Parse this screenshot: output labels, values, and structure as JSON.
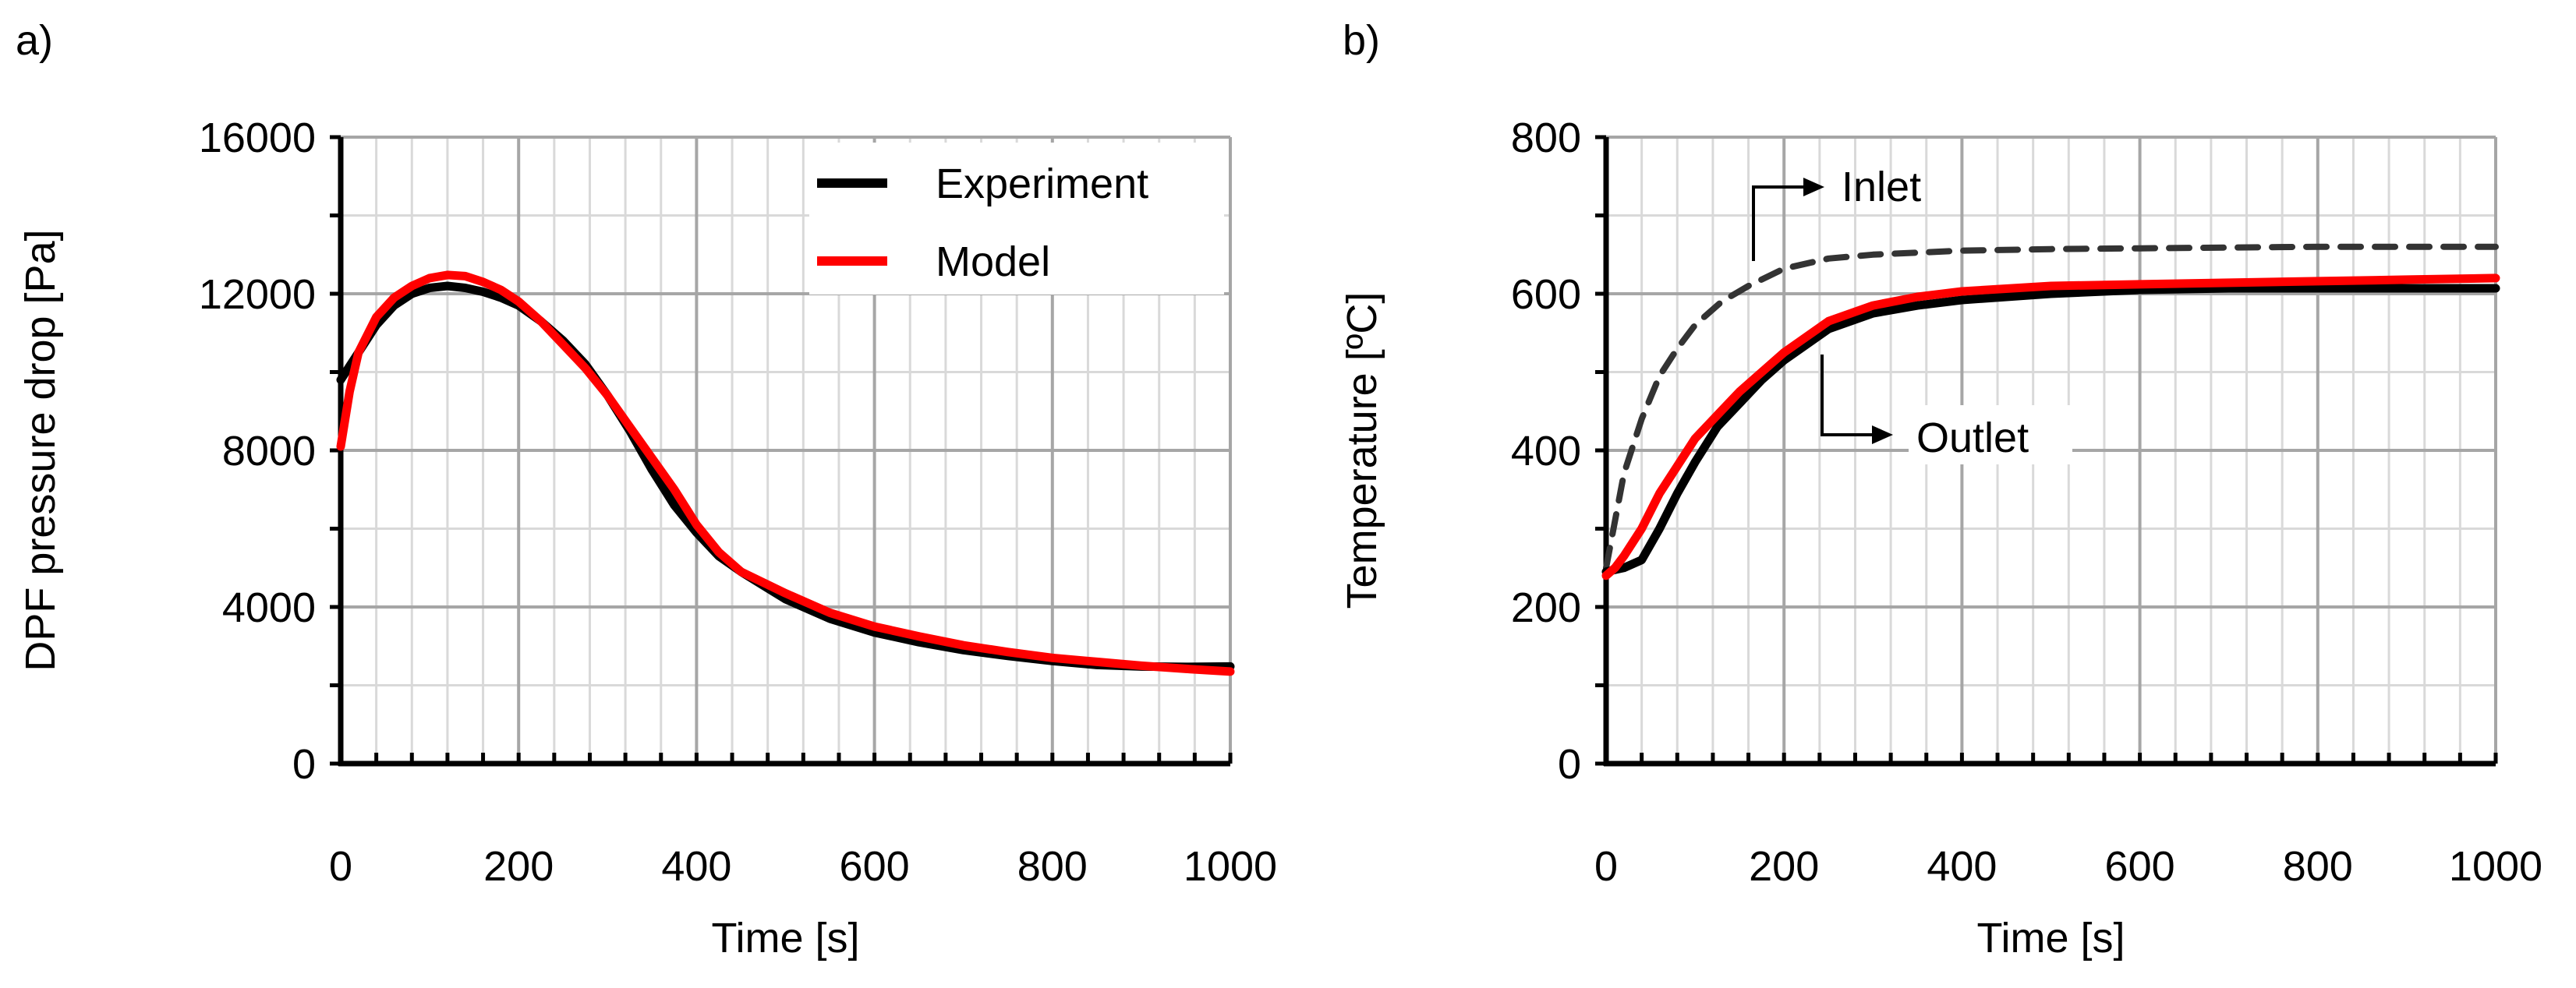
{
  "colors": {
    "experiment": "#000000",
    "model": "#ff0000",
    "inlet": "#333333",
    "grid_major": "#a6a6a6",
    "grid_minor": "#d9d9d9",
    "axis": "#000000"
  },
  "chart_data": [
    {
      "panel_label": "a)",
      "type": "line",
      "title": "",
      "xlabel": "Time [s]",
      "ylabel": "DPF pressure drop [Pa]",
      "xlim": [
        0,
        1000
      ],
      "ylim": [
        0,
        16000
      ],
      "x_ticks": [
        0,
        200,
        400,
        600,
        800,
        1000
      ],
      "x_tick_labels": [
        "0",
        "200",
        "400",
        "600",
        "800",
        "1000"
      ],
      "y_ticks": [
        0,
        4000,
        8000,
        12000,
        16000
      ],
      "y_tick_labels": [
        "0",
        "4000",
        "8000",
        "12000",
        "16000"
      ],
      "x_minor_step": 40,
      "y_minor_step": 2000,
      "grid": true,
      "legend_position": "top-right",
      "legend": [
        "Experiment",
        "Model"
      ],
      "series": [
        {
          "name": "Experiment",
          "style": "solid",
          "x": [
            0,
            20,
            40,
            60,
            80,
            100,
            120,
            140,
            160,
            180,
            200,
            225,
            250,
            275,
            300,
            325,
            350,
            375,
            400,
            425,
            450,
            500,
            550,
            600,
            650,
            700,
            750,
            800,
            850,
            900,
            950,
            1000
          ],
          "y": [
            9800,
            10500,
            11200,
            11700,
            12000,
            12150,
            12200,
            12150,
            12050,
            11900,
            11700,
            11300,
            10800,
            10200,
            9400,
            8500,
            7500,
            6600,
            5900,
            5300,
            4900,
            4200,
            3700,
            3350,
            3100,
            2900,
            2750,
            2620,
            2520,
            2480,
            2470,
            2480
          ]
        },
        {
          "name": "Model",
          "style": "solid",
          "x": [
            0,
            10,
            20,
            40,
            60,
            80,
            100,
            120,
            140,
            160,
            180,
            200,
            225,
            250,
            275,
            300,
            325,
            350,
            375,
            400,
            425,
            450,
            500,
            550,
            600,
            650,
            700,
            750,
            800,
            850,
            900,
            950,
            1000
          ],
          "y": [
            8100,
            9500,
            10500,
            11400,
            11900,
            12200,
            12400,
            12480,
            12450,
            12300,
            12100,
            11800,
            11300,
            10700,
            10100,
            9400,
            8600,
            7800,
            7000,
            6100,
            5400,
            4900,
            4350,
            3850,
            3500,
            3250,
            3020,
            2850,
            2700,
            2600,
            2500,
            2420,
            2350
          ]
        }
      ]
    },
    {
      "panel_label": "b)",
      "type": "line",
      "title": "",
      "xlabel": "Time [s]",
      "ylabel": "Temperature [ºC]",
      "xlim": [
        0,
        1000
      ],
      "ylim": [
        0,
        800
      ],
      "x_ticks": [
        0,
        200,
        400,
        600,
        800,
        1000
      ],
      "x_tick_labels": [
        "0",
        "200",
        "400",
        "600",
        "800",
        "1000"
      ],
      "y_ticks": [
        0,
        200,
        400,
        600,
        800
      ],
      "y_tick_labels": [
        "0",
        "200",
        "400",
        "600",
        "800"
      ],
      "x_minor_step": 40,
      "y_minor_step": 100,
      "grid": true,
      "annotations": [
        {
          "text": "Inlet",
          "target_series": "Inlet"
        },
        {
          "text": "Outlet",
          "target_series": "Outlet experiment"
        }
      ],
      "series": [
        {
          "name": "Inlet",
          "style": "dashed",
          "x": [
            0,
            10,
            20,
            40,
            60,
            80,
            100,
            130,
            160,
            200,
            250,
            300,
            400,
            500,
            600,
            800,
            1000
          ],
          "y": [
            250,
            310,
            370,
            440,
            495,
            530,
            560,
            590,
            610,
            632,
            645,
            650,
            655,
            657,
            658,
            660,
            660
          ]
        },
        {
          "name": "Outlet experiment",
          "style": "solid",
          "x": [
            0,
            20,
            40,
            60,
            80,
            100,
            125,
            150,
            175,
            200,
            250,
            300,
            350,
            400,
            500,
            600,
            700,
            800,
            900,
            1000
          ],
          "y": [
            245,
            250,
            260,
            300,
            345,
            385,
            430,
            460,
            490,
            515,
            555,
            575,
            585,
            592,
            600,
            605,
            607,
            607,
            607,
            607
          ]
        },
        {
          "name": "Outlet model",
          "style": "solid",
          "x": [
            0,
            10,
            20,
            40,
            60,
            80,
            100,
            125,
            150,
            175,
            200,
            250,
            300,
            350,
            400,
            500,
            600,
            700,
            800,
            900,
            1000
          ],
          "y": [
            240,
            250,
            265,
            300,
            345,
            380,
            415,
            445,
            475,
            500,
            525,
            565,
            585,
            596,
            603,
            610,
            612,
            614,
            616,
            618,
            620
          ]
        }
      ]
    }
  ]
}
